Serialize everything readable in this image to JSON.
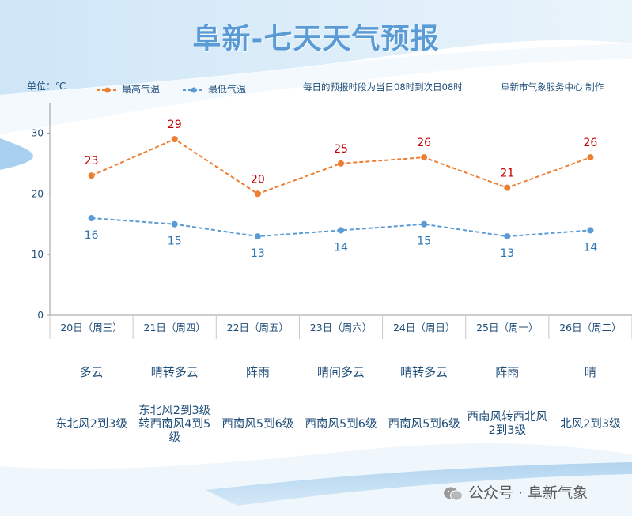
{
  "title": "阜新-七天天气预报",
  "unit_label": "单位：℃",
  "note": "每日的预报时段为当日08时到次日08时",
  "maker": "阜新市气象服务中心 制作",
  "footer": "公众号 · 阜新气象",
  "colors": {
    "high": "#ed7d31",
    "low": "#5b9bd5",
    "high_label": "#c00000",
    "low_label": "#2e75b6",
    "text": "#1f4e79"
  },
  "days": [
    {
      "date": "20日（周三）",
      "weather": "多云",
      "wind": "东北风2到3级"
    },
    {
      "date": "21日（周四）",
      "weather": "晴转多云",
      "wind": "东北风2到3级转西南风4到5级"
    },
    {
      "date": "22日（周五）",
      "weather": "阵雨",
      "wind": "西南风5到6级"
    },
    {
      "date": "23日（周六）",
      "weather": "晴间多云",
      "wind": "西南风5到6级"
    },
    {
      "date": "24日（周日）",
      "weather": "晴转多云",
      "wind": "西南风5到6级"
    },
    {
      "date": "25日（周一）",
      "weather": "阵雨",
      "wind": "西南风转西北风2到3级"
    },
    {
      "date": "26日（周二）",
      "weather": "晴",
      "wind": "北风2到3级"
    }
  ],
  "chart_data": {
    "type": "line",
    "categories": [
      "20日（周三）",
      "21日（周四）",
      "22日（周五）",
      "23日（周六）",
      "24日（周日）",
      "25日（周一）",
      "26日（周二）"
    ],
    "series": [
      {
        "name": "最高气温",
        "values": [
          23,
          29,
          20,
          25,
          26,
          21,
          26
        ]
      },
      {
        "name": "最低气温",
        "values": [
          16,
          15,
          13,
          14,
          15,
          13,
          14
        ]
      }
    ],
    "ylim": [
      0,
      35
    ],
    "yticks": [
      0,
      10,
      20,
      30
    ],
    "ylabel": "单位：℃",
    "legend": "top-left",
    "grid": false
  }
}
